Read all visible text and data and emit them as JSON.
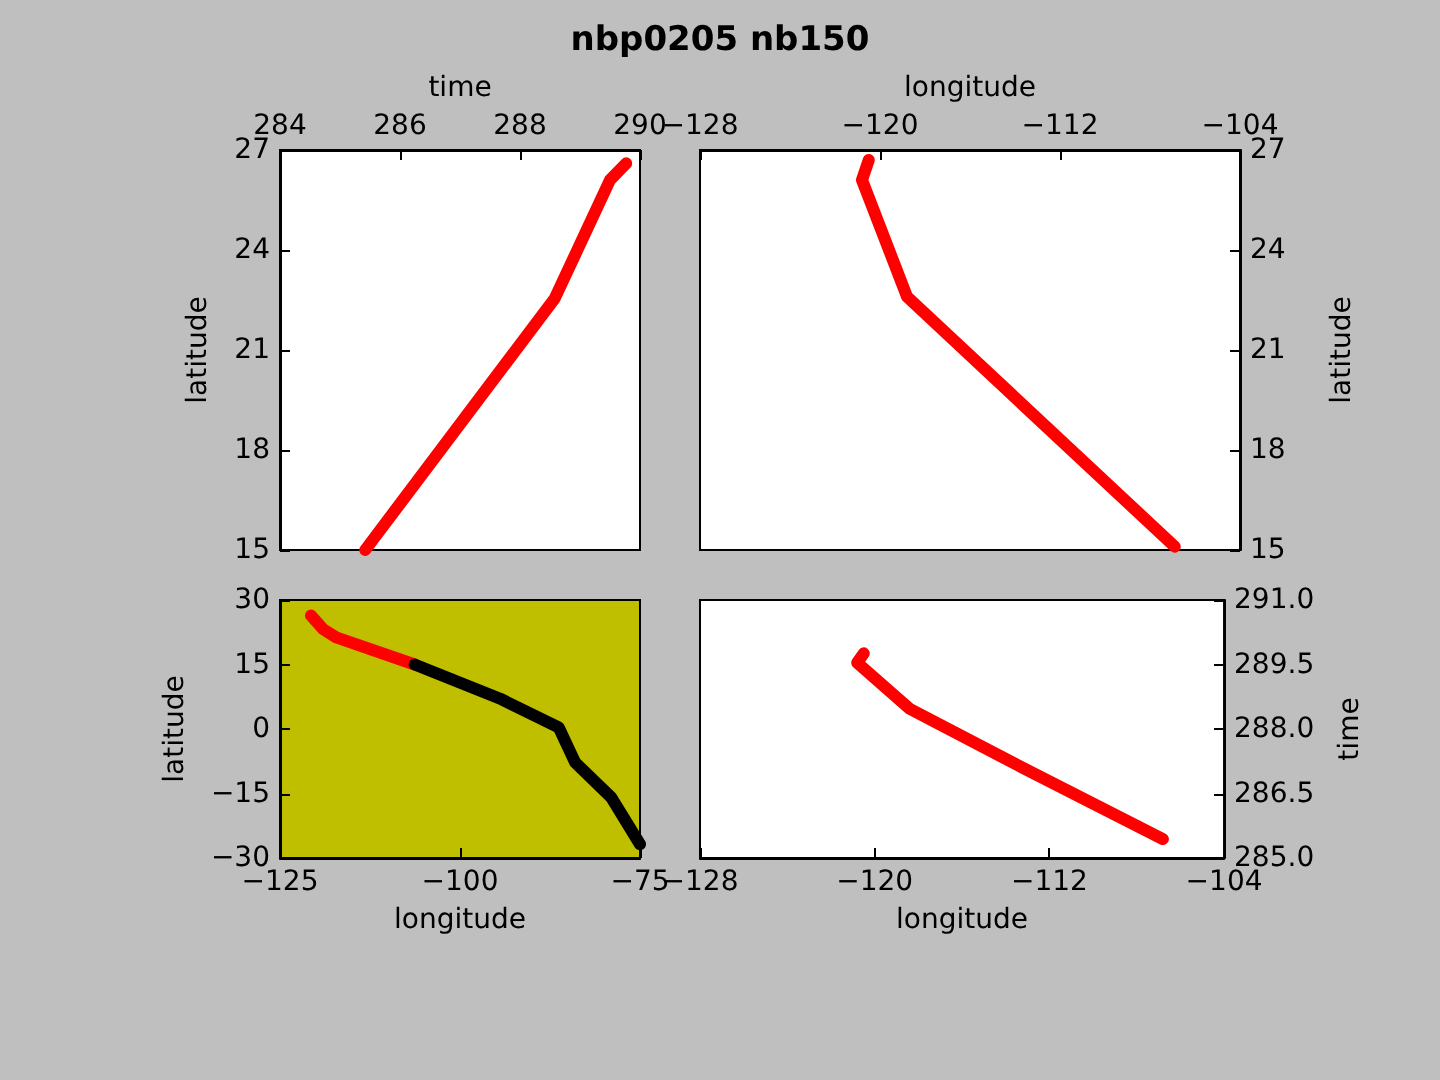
{
  "chart_data": [
    {
      "type": "line",
      "title": "nbp0205 nb150",
      "xlabel": "time",
      "ylabel": "latitude",
      "line_style": "solid",
      "xlim": [
        284,
        290
      ],
      "xticks": [
        284,
        286,
        288,
        290
      ],
      "ylim": [
        15,
        27
      ],
      "yticks": [
        15,
        18,
        21,
        24,
        27
      ],
      "series": [
        {
          "color": "#ff0000",
          "x": [
            285.42,
            288.58,
            289.5,
            289.77
          ],
          "values": [
            15.0,
            22.55,
            26.1,
            26.6
          ]
        }
      ]
    },
    {
      "type": "line",
      "xlabel": "longitude",
      "ylabel": "latitude",
      "line_style": "solid",
      "xlim": [
        -128,
        -104
      ],
      "xticks": [
        {
          "value": -128,
          "label": "−128"
        },
        {
          "value": -120,
          "label": "−120"
        },
        {
          "value": -112,
          "label": "−112"
        },
        {
          "value": -104,
          "label": "−104"
        }
      ],
      "ylim": [
        15,
        27
      ],
      "yticks": [
        15,
        18,
        21,
        24,
        27
      ],
      "series": [
        {
          "color": "#ff0000",
          "x": [
            -120.5,
            -120.8,
            -118.8,
            -106.9
          ],
          "values": [
            26.7,
            26.1,
            22.6,
            15.1
          ]
        }
      ]
    },
    {
      "type": "line",
      "xlabel": "longitude",
      "ylabel": "latitude",
      "line_style": "solid",
      "xlim": [
        -125,
        -75
      ],
      "xticks": [
        {
          "value": -125,
          "label": "−125"
        },
        {
          "value": -100,
          "label": "−100"
        },
        {
          "value": -75,
          "label": "−75"
        }
      ],
      "ylim": [
        -30,
        30
      ],
      "yticks": [
        {
          "value": -30,
          "label": "−30"
        },
        {
          "value": -15,
          "label": "−15"
        },
        0,
        15,
        30
      ],
      "series": [
        {
          "color": "#ff0000",
          "x": [
            -120.7,
            -119.0,
            -117.2,
            -106.3
          ],
          "values": [
            26.4,
            23.2,
            21.3,
            15.0
          ]
        },
        {
          "color": "#000000",
          "x": [
            -106.3,
            -94.5,
            -86.3,
            -84.0,
            -79.0,
            -75.0
          ],
          "values": [
            15.0,
            7.1,
            0.4,
            -7.8,
            -15.9,
            -26.8
          ]
        }
      ]
    },
    {
      "type": "line",
      "xlabel": "longitude",
      "ylabel": "time",
      "line_style": "solid",
      "xlim": [
        -128,
        -104
      ],
      "xticks": [
        {
          "value": -128,
          "label": "−128"
        },
        {
          "value": -120,
          "label": "−120"
        },
        {
          "value": -112,
          "label": "−112"
        },
        {
          "value": -104,
          "label": "−104"
        }
      ],
      "ylim": [
        285,
        291
      ],
      "yticks": [
        {
          "value": 285,
          "label": "285.0"
        },
        {
          "value": 286.5,
          "label": "286.5"
        },
        {
          "value": 288,
          "label": "288.0"
        },
        {
          "value": 289.5,
          "label": "289.5"
        },
        {
          "value": 291,
          "label": "291.0"
        }
      ],
      "series": [
        {
          "color": "#ff0000",
          "x": [
            -120.5,
            -120.8,
            -118.4,
            -113.3,
            -106.8
          ],
          "values": [
            289.76,
            289.54,
            288.47,
            287.12,
            285.44
          ]
        }
      ]
    }
  ]
}
